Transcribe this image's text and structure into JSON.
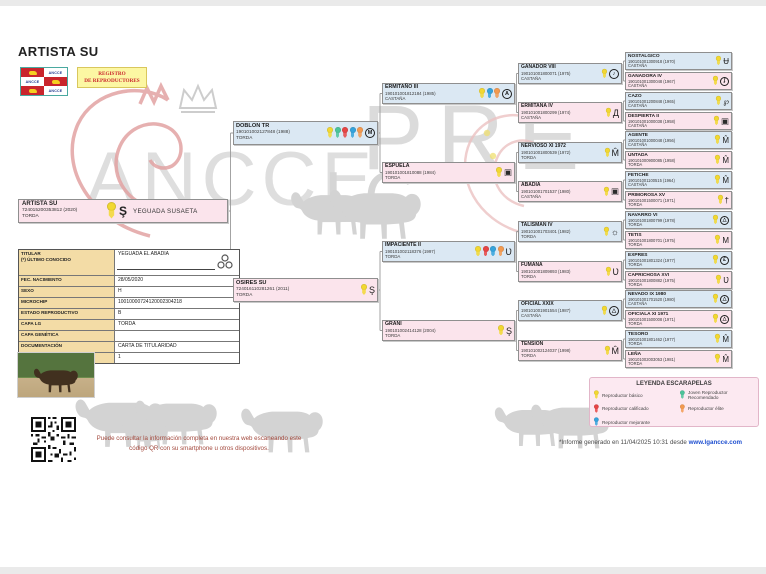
{
  "page": {
    "title": "ARTISTA SU",
    "logo_text": "ANCCE",
    "badge_line1": "REGISTRO",
    "badge_line2": "DE REPRODUCTORES",
    "watermark": {
      "pre": "PRE",
      "ancce": "ANCCE",
      "lg": "LG"
    }
  },
  "colors": {
    "male_box": "#dbe8f3",
    "female_box": "#fbe4ec",
    "accent_red": "#c9252c",
    "link_blue": "#1e4fd0",
    "rosettes": {
      "yellow": "#f2d832",
      "red": "#e64545",
      "blue": "#35a3dc",
      "green": "#4cc39a",
      "orange": "#f29a50"
    }
  },
  "subject": {
    "name": "ARTISTA SU",
    "code": "724015200353812 (2020)",
    "coat": "TORDA",
    "rosettes": [
      "yellow"
    ],
    "brand": "Ş",
    "stud": "YEGUADA SUSAETA"
  },
  "details": {
    "rows": [
      {
        "label": "TITULAR\n(*) ÚLTIMO CONOCIDO",
        "value": "YEGUADA EL ABADIA"
      },
      {
        "label": "FEC. NACIMIENTO",
        "value": "28/05/2020"
      },
      {
        "label": "SEXO",
        "value": "H"
      },
      {
        "label": "MICROCHIP",
        "value": "10010000724120002304218"
      },
      {
        "label": "ESTADO REPRODUCTIVO",
        "value": "B"
      },
      {
        "label": "CAPA LG",
        "value": "TORDA"
      },
      {
        "label": "CAPA GENÉTICA",
        "value": ""
      },
      {
        "label": "DOCUMENTACIÓN",
        "value": "CARTA DE TITULARIDAD"
      },
      {
        "label": "Nº DE HIJOS",
        "value": "1"
      }
    ]
  },
  "pedigree": {
    "gen1": [
      {
        "name": "DOBLON TR",
        "code": "190101002127848 (1988)",
        "coat": "TORDA",
        "rosettes": [
          "yellow",
          "green",
          "red",
          "blue",
          "orange"
        ],
        "brand": "M"
      },
      {
        "name": "OSIRES SU",
        "code": "724016110281261 (2011)",
        "coat": "TORDA",
        "rosettes": [
          "yellow"
        ],
        "brand": "Ş"
      }
    ],
    "gen2": [
      {
        "name": "ERMITAÑO III",
        "code": "190101001812184 (1985)",
        "coat": "CASTAÑA",
        "rosettes": [
          "yellow",
          "blue",
          "orange"
        ],
        "brand": "A"
      },
      {
        "name": "ESPUELA",
        "code": "190101001810088 (1984)",
        "coat": "TORDA",
        "rosettes": [
          "yellow"
        ],
        "brand": "▣"
      },
      {
        "name": "IMPACIENTE II",
        "code": "190101002118376 (1997)",
        "coat": "TORDA",
        "rosettes": [
          "yellow",
          "red",
          "blue",
          "orange"
        ],
        "brand": "Ʋ"
      },
      {
        "name": "GRANI",
        "code": "190101002414128 (2004)",
        "coat": "TORDA",
        "rosettes": [
          "yellow"
        ],
        "brand": "Ş"
      }
    ],
    "gen3": [
      {
        "name": "GANADOR VIII",
        "code": "190101001800071 (1975)",
        "coat": "CASTAÑA",
        "rosettes": [
          "yellow"
        ],
        "brand": "♪"
      },
      {
        "name": "ERMITANA IV",
        "code": "190101001800299 (1974)",
        "coat": "CASTAÑA",
        "rosettes": [
          "yellow"
        ],
        "brand": "Д"
      },
      {
        "name": "NERVIOSO XI 1972",
        "code": "190101001800539 (1972)",
        "coat": "TORDA",
        "rosettes": [
          "yellow"
        ],
        "brand": "M̂"
      },
      {
        "name": "ABADIA",
        "code": "190101001701537 (1980)",
        "coat": "CASTAÑA",
        "rosettes": [
          "yellow"
        ],
        "brand": "▣"
      },
      {
        "name": "TALISMAN IV",
        "code": "190101001703401 (1982)",
        "coat": "TORDA",
        "rosettes": [
          "yellow"
        ],
        "brand": "☼"
      },
      {
        "name": "FUMANA",
        "code": "190101001809893 (1983)",
        "coat": "TORDA",
        "rosettes": [
          "yellow"
        ],
        "brand": "Ʋ"
      },
      {
        "name": "OFICIAL XXIX",
        "code": "190101001901554 (1987)",
        "coat": "CASTAÑA",
        "rosettes": [
          "yellow"
        ],
        "brand": "△"
      },
      {
        "name": "TENSION",
        "code": "190101002124037 (1998)",
        "coat": "TORDA",
        "rosettes": [
          "yellow"
        ],
        "brand": "M̂"
      }
    ],
    "gen4": [
      {
        "name": "NOSTALGICO",
        "code": "190101001300918 (1970)",
        "coat": "CASTAÑA",
        "rosettes": [
          "yellow"
        ],
        "brand": "Ʉ"
      },
      {
        "name": "GANADORA IV",
        "code": "190101001300048 (1967)",
        "coat": "CASTAÑA",
        "rosettes": [
          "yellow"
        ],
        "brand": "ʄ"
      },
      {
        "name": "CAZO",
        "code": "190101001200848 (1965)",
        "coat": "CASTAÑA",
        "rosettes": [
          "yellow"
        ],
        "brand": "℘"
      },
      {
        "name": "DESPIERTA II",
        "code": "190101001000038 (1958)",
        "coat": "CASTAÑA",
        "rosettes": [
          "yellow"
        ],
        "brand": "▣"
      },
      {
        "name": "AGENTE",
        "code": "190101001000048 (1956)",
        "coat": "CASTAÑA",
        "rosettes": [
          "yellow"
        ],
        "brand": "M̂"
      },
      {
        "name": "UNTADA",
        "code": "190101000900085 (1958)",
        "coat": "TORDA",
        "rosettes": [
          "yellow"
        ],
        "brand": "M̂"
      },
      {
        "name": "FETICHE",
        "code": "190101001100515 (1964)",
        "coat": "CASTAÑA",
        "rosettes": [
          "yellow"
        ],
        "brand": "M̂"
      },
      {
        "name": "PRIMOROSA XV",
        "code": "190101001500071 (1971)",
        "coat": "TORDA",
        "rosettes": [
          "yellow"
        ],
        "brand": "†"
      },
      {
        "name": "NAVARRO VI",
        "code": "190101001800799 (1978)",
        "coat": "TORDA",
        "rosettes": [
          "yellow"
        ],
        "brand": "△"
      },
      {
        "name": "TETIS",
        "code": "190101001800701 (1975)",
        "coat": "TORDA",
        "rosettes": [
          "yellow"
        ],
        "brand": "M"
      },
      {
        "name": "EXPRES",
        "code": "190101001801324 (1977)",
        "coat": "TORDA",
        "rosettes": [
          "yellow"
        ],
        "brand": "£"
      },
      {
        "name": "CAPRICHOSA XVI",
        "code": "190101001800882 (1975)",
        "coat": "TORDA",
        "rosettes": [
          "yellow"
        ],
        "brand": "Ʋ"
      },
      {
        "name": "NEVADO IX 1980",
        "code": "190101001701520 (1980)",
        "coat": "CASTAÑA",
        "rosettes": [
          "yellow"
        ],
        "brand": "△"
      },
      {
        "name": "OFICIALA XI 1971",
        "code": "190101001500008 (1971)",
        "coat": "TORDA",
        "rosettes": [
          "yellow"
        ],
        "brand": "△"
      },
      {
        "name": "TESORO",
        "code": "190101001801462 (1977)",
        "coat": "TORDA",
        "rosettes": [
          "yellow"
        ],
        "brand": "M̂"
      },
      {
        "name": "LEÑA",
        "code": "190101002003053 (1981)",
        "coat": "TORDA",
        "rosettes": [
          "yellow"
        ],
        "brand": "M̂"
      }
    ]
  },
  "legend": {
    "title": "LEYENDA ESCARAPELAS",
    "items": [
      {
        "label": "Reproductor básico",
        "rosette": [
          "yellow"
        ]
      },
      {
        "label": "Reproductor calificado",
        "rosette": [
          "red"
        ]
      },
      {
        "label": "Reproductor mejorante",
        "rosette": [
          "blue"
        ]
      },
      {
        "label": "Joven Reproductor Recomendado",
        "rosette": [
          "green"
        ]
      },
      {
        "label": "Reproductor élite",
        "rosette": [
          "orange"
        ]
      }
    ]
  },
  "footer": {
    "qr_note_line1": "Puede consultar la información completa en nuestra web escaneando este",
    "qr_note_line2": "código QR con su smartphone u otros dispositivos.",
    "report_prefix": "*Informe generado en 11/04/2025 10:31 desde ",
    "report_link": "www.lgancce.com"
  }
}
